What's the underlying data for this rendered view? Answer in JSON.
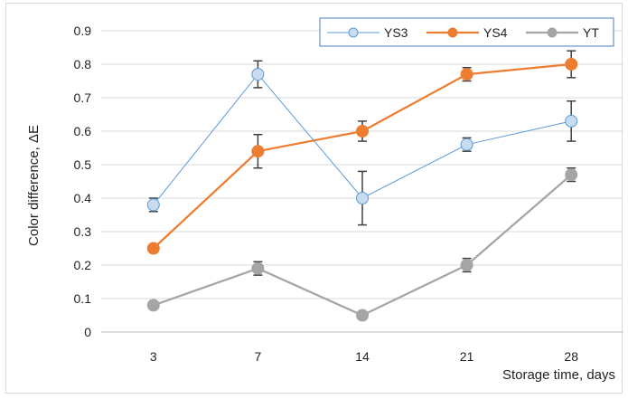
{
  "chart_data": {
    "type": "line",
    "title": "",
    "xlabel": "Storage time, days",
    "ylabel": "Color difference, ΔE",
    "categories": [
      "3",
      "7",
      "14",
      "21",
      "28"
    ],
    "ylim": [
      0,
      0.9
    ],
    "yticks": [
      "0",
      "0.1",
      "0.2",
      "0.3",
      "0.4",
      "0.5",
      "0.6",
      "0.7",
      "0.8",
      "0.9"
    ],
    "grid": "horizontal",
    "legend_position": "top-right",
    "series": [
      {
        "name": "YS3",
        "color": "#5b9bd5",
        "marker": "hollow-circle",
        "line_width": "thin",
        "values": [
          0.38,
          0.77,
          0.4,
          0.56,
          0.63
        ],
        "errors": [
          0.02,
          0.04,
          0.08,
          0.02,
          0.06
        ]
      },
      {
        "name": "YS4",
        "color": "#ed7d31",
        "marker": "filled-circle",
        "line_width": "thick",
        "values": [
          0.25,
          0.54,
          0.6,
          0.77,
          0.8
        ],
        "errors": [
          0.0,
          0.05,
          0.03,
          0.02,
          0.04
        ]
      },
      {
        "name": "YT",
        "color": "#a5a5a5",
        "marker": "filled-circle",
        "line_width": "thick",
        "values": [
          0.08,
          0.19,
          0.05,
          0.2,
          0.47
        ],
        "errors": [
          0.0,
          0.02,
          0.0,
          0.02,
          0.02
        ]
      }
    ]
  }
}
